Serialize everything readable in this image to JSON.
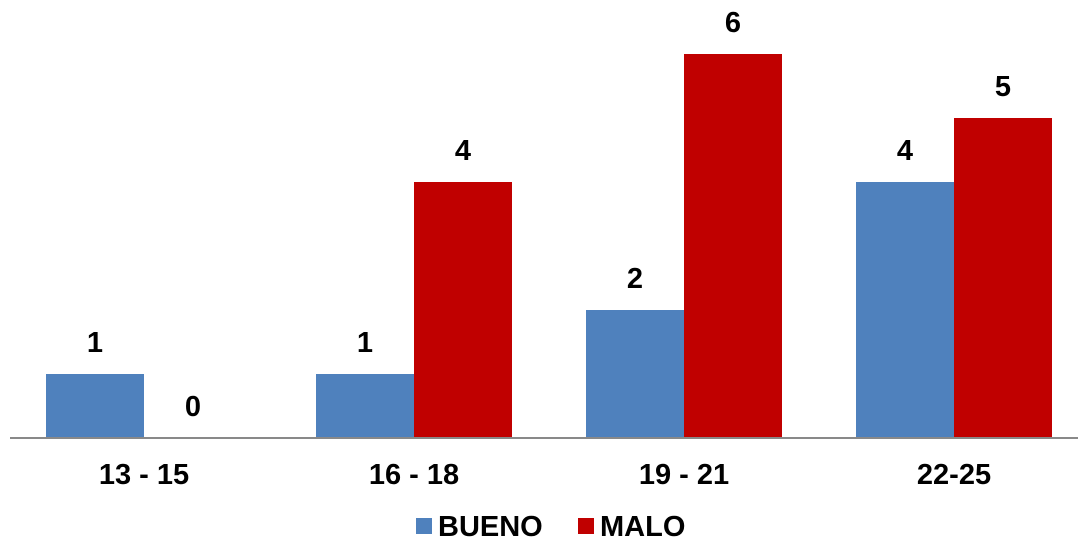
{
  "chart_data": {
    "type": "bar",
    "categories": [
      "13 - 15",
      "16 - 18",
      "19 - 21",
      "22-25"
    ],
    "series": [
      {
        "name": "BUENO",
        "color": "#4F81BD",
        "values": [
          1,
          1,
          2,
          4
        ]
      },
      {
        "name": "MALO",
        "color": "#C00000",
        "values": [
          0,
          4,
          6,
          5
        ]
      }
    ],
    "ylim": [
      0,
      6
    ],
    "grid": false,
    "legend": "bottom",
    "data_labels": true
  }
}
